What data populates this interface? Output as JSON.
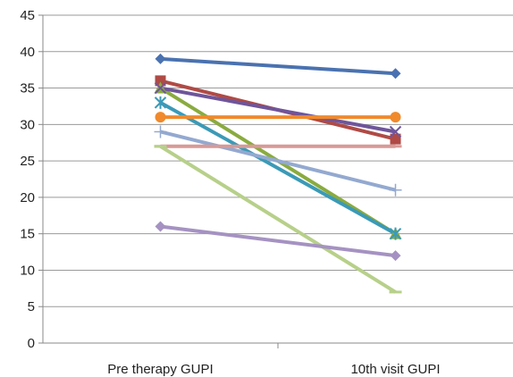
{
  "chart_data": {
    "type": "line",
    "categories": [
      "Pre therapy GUPI",
      "10th visit GUPI"
    ],
    "ylim": [
      0,
      45
    ],
    "yticks": [
      0,
      5,
      10,
      15,
      20,
      25,
      30,
      35,
      40,
      45
    ],
    "grid": true,
    "legend": "none",
    "series": [
      {
        "values": [
          39,
          37
        ],
        "color": "#4a72b0",
        "marker": "diamond"
      },
      {
        "values": [
          36,
          28
        ],
        "color": "#b04a45",
        "marker": "square"
      },
      {
        "values": [
          35,
          15
        ],
        "color": "#8aab3f",
        "marker": "triangle"
      },
      {
        "values": [
          35,
          29
        ],
        "color": "#6f559a",
        "marker": "x"
      },
      {
        "values": [
          33,
          15
        ],
        "color": "#3b9ab7",
        "marker": "star"
      },
      {
        "values": [
          31,
          31
        ],
        "color": "#f08a2c",
        "marker": "circle"
      },
      {
        "values": [
          29,
          21
        ],
        "color": "#93a9d0",
        "marker": "plus"
      },
      {
        "values": [
          27,
          27
        ],
        "color": "#d79a97",
        "marker": "dash"
      },
      {
        "values": [
          27,
          7
        ],
        "color": "#b7d08a",
        "marker": "dash"
      },
      {
        "values": [
          16,
          12
        ],
        "color": "#a592c2",
        "marker": "diamond"
      }
    ]
  }
}
